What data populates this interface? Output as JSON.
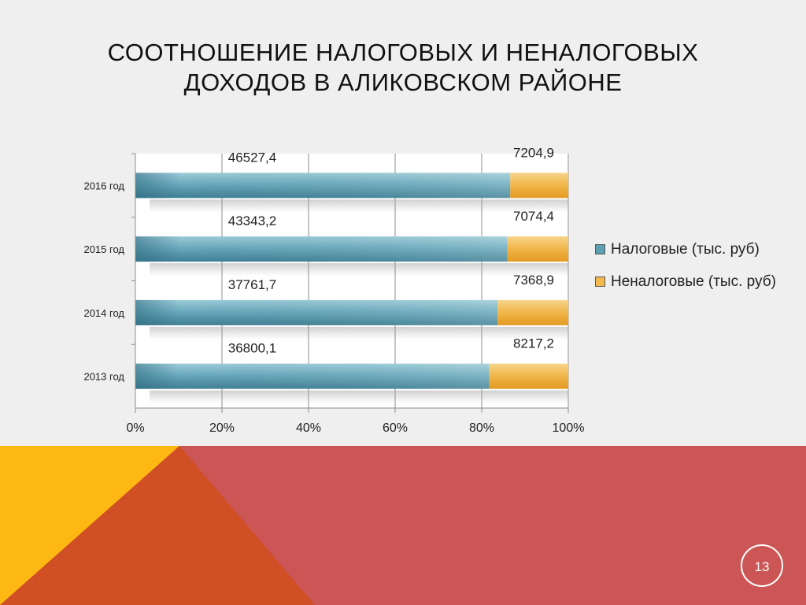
{
  "slide": {
    "title_lines": [
      "СООТНОШЕНИЕ НАЛОГОВЫХ И НЕНАЛОГОВЫХ",
      "ДОХОДОВ В АЛИКОВСКОМ РАЙОНЕ"
    ],
    "page_number": "13"
  },
  "colors": {
    "tax": "#5d9fb3",
    "nontax": "#f3b94c",
    "band_left": "#fdb813",
    "band_mid": "#d14f25",
    "band_right": "#cc5555"
  },
  "chart_data": {
    "type": "bar",
    "orientation": "horizontal",
    "stacked": "percent",
    "title": "",
    "xlabel": "",
    "ylabel": "",
    "categories": [
      "2016 год",
      "2015 год",
      "2014 год",
      "2013 год"
    ],
    "series": [
      {
        "name": "Налоговые (тыс. руб)",
        "values": [
          46527.4,
          43343.2,
          37761.7,
          36800.1
        ],
        "labels": [
          "46527,4",
          "43343,2",
          "37761,7",
          "36800,1"
        ]
      },
      {
        "name": "Неналоговые (тыс. руб)",
        "values": [
          7204.9,
          7074.4,
          7368.9,
          8217.2
        ],
        "labels": [
          "7204,9",
          "7074,4",
          "7368,9",
          "8217,2"
        ]
      }
    ],
    "xticks": [
      "0%",
      "20%",
      "40%",
      "60%",
      "80%",
      "100%"
    ],
    "xlim": [
      0,
      100
    ],
    "grid": true,
    "legend_position": "right"
  }
}
